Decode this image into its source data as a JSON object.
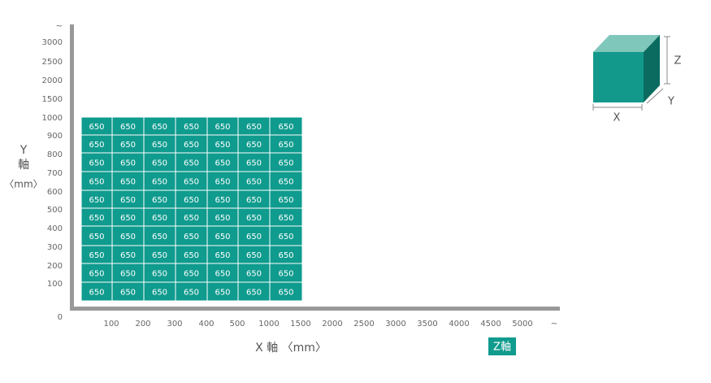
{
  "y_axis": {
    "label_lines": [
      "Y",
      "軸",
      "〈mm〉"
    ],
    "ticks": [
      "~",
      "3000",
      "2500",
      "2000",
      "1500",
      "1000",
      "900",
      "800",
      "700",
      "600",
      "500",
      "400",
      "300",
      "200",
      "100",
      "0"
    ]
  },
  "x_axis": {
    "title": "X 軸 〈mm〉",
    "ticks": [
      "100",
      "200",
      "300",
      "400",
      "500",
      "1000",
      "1500",
      "2000",
      "2500",
      "3000",
      "3500",
      "4000",
      "4500",
      "5000",
      "~"
    ]
  },
  "z_badge": "Z軸",
  "grid": {
    "rows": [
      [
        650,
        650,
        650,
        650,
        650,
        650,
        650
      ],
      [
        650,
        650,
        650,
        650,
        650,
        650,
        650
      ],
      [
        650,
        650,
        650,
        650,
        650,
        650,
        650
      ],
      [
        650,
        650,
        650,
        650,
        650,
        650,
        650
      ],
      [
        650,
        650,
        650,
        650,
        650,
        650,
        650
      ],
      [
        650,
        650,
        650,
        650,
        650,
        650,
        650
      ],
      [
        650,
        650,
        650,
        650,
        650,
        650,
        650
      ],
      [
        650,
        650,
        650,
        650,
        650,
        650,
        650
      ],
      [
        650,
        650,
        650,
        650,
        650,
        650,
        650
      ],
      [
        650,
        650,
        650,
        650,
        650,
        650,
        650
      ]
    ]
  },
  "cube": {
    "x": "X",
    "y": "Y",
    "z": "Z"
  }
}
